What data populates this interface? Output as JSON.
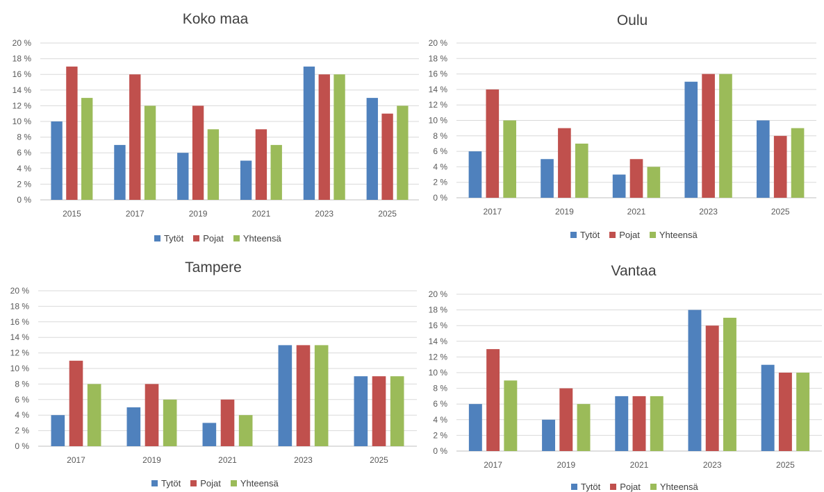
{
  "colors": {
    "Tytöt": "#4f81bd",
    "Pojat": "#c0504d",
    "Yhteensä": "#9bbb59"
  },
  "chart_data": [
    {
      "type": "bar",
      "title": "Koko maa",
      "categories": [
        "2015",
        "2017",
        "2019",
        "2021",
        "2023",
        "2025"
      ],
      "series": [
        {
          "name": "Tytöt",
          "values": [
            10,
            7,
            6,
            5,
            17,
            13
          ]
        },
        {
          "name": "Pojat",
          "values": [
            17,
            16,
            12,
            9,
            16,
            11
          ]
        },
        {
          "name": "Yhteensä",
          "values": [
            13,
            12,
            9,
            7,
            16,
            12
          ]
        }
      ],
      "yticks": [
        "0 %",
        "2 %",
        "4 %",
        "6 %",
        "8 %",
        "10 %",
        "12 %",
        "14 %",
        "16 %",
        "18 %",
        "20 %"
      ],
      "ylim": [
        0,
        20
      ],
      "grid": true,
      "legend": "bottom"
    },
    {
      "type": "bar",
      "title": "Oulu",
      "categories": [
        "2017",
        "2019",
        "2021",
        "2023",
        "2025"
      ],
      "series": [
        {
          "name": "Tytöt",
          "values": [
            6,
            5,
            3,
            15,
            10
          ]
        },
        {
          "name": "Pojat",
          "values": [
            14,
            9,
            5,
            16,
            8
          ]
        },
        {
          "name": "Yhteensä",
          "values": [
            10,
            7,
            4,
            16,
            9
          ]
        }
      ],
      "yticks": [
        "0 %",
        "2 %",
        "4 %",
        "6 %",
        "8 %",
        "10 %",
        "12 %",
        "14 %",
        "16 %",
        "18 %",
        "20 %"
      ],
      "ylim": [
        0,
        20
      ],
      "grid": true,
      "legend": "bottom"
    },
    {
      "type": "bar",
      "title": "Tampere",
      "categories": [
        "2017",
        "2019",
        "2021",
        "2023",
        "2025"
      ],
      "series": [
        {
          "name": "Tytöt",
          "values": [
            4,
            5,
            3,
            13,
            9
          ]
        },
        {
          "name": "Pojat",
          "values": [
            11,
            8,
            6,
            13,
            9
          ]
        },
        {
          "name": "Yhteensä",
          "values": [
            8,
            6,
            4,
            13,
            9
          ]
        }
      ],
      "yticks": [
        "0 %",
        "2 %",
        "4 %",
        "6 %",
        "8 %",
        "10 %",
        "12 %",
        "14 %",
        "16 %",
        "18 %",
        "20 %"
      ],
      "ylim": [
        0,
        20
      ],
      "grid": true,
      "legend": "bottom"
    },
    {
      "type": "bar",
      "title": "Vantaa",
      "categories": [
        "2017",
        "2019",
        "2021",
        "2023",
        "2025"
      ],
      "series": [
        {
          "name": "Tytöt",
          "values": [
            6,
            4,
            7,
            18,
            11
          ]
        },
        {
          "name": "Pojat",
          "values": [
            13,
            8,
            7,
            16,
            10
          ]
        },
        {
          "name": "Yhteensä",
          "values": [
            9,
            6,
            7,
            17,
            10
          ]
        }
      ],
      "yticks": [
        "0 %",
        "2 %",
        "4 %",
        "6 %",
        "8 %",
        "10 %",
        "12 %",
        "14 %",
        "16 %",
        "18 %",
        "20 %"
      ],
      "ylim": [
        0,
        20
      ],
      "grid": true,
      "legend": "bottom"
    }
  ]
}
